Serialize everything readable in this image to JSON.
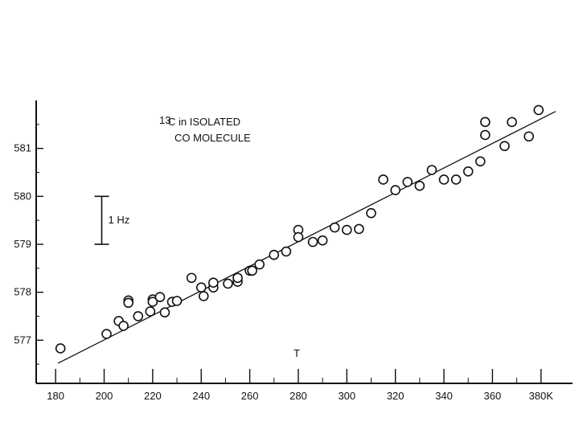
{
  "chart_data": {
    "type": "scatter",
    "title": "",
    "xlabel": "T",
    "ylabel": "",
    "xlim": [
      172,
      393
    ],
    "ylim": [
      576.1,
      582.0
    ],
    "grid": false,
    "legend": "none",
    "x_ticks": [
      180,
      200,
      220,
      240,
      260,
      280,
      300,
      320,
      340,
      360,
      380
    ],
    "x_tick_labels": [
      "180",
      "200",
      "220",
      "240",
      "260",
      "280",
      "300",
      "320",
      "340",
      "360",
      "380K"
    ],
    "y_ticks": [
      577,
      578,
      579,
      580,
      581
    ],
    "y_tick_labels": [
      "577",
      "578",
      "579",
      "580",
      "581"
    ],
    "annotation": {
      "superscript": "13",
      "line1": "C in ISOLATED",
      "line2": "CO MOLECULE"
    },
    "scale_bar": {
      "label": "1 Hz",
      "y_from": 579,
      "y_to": 580,
      "x": 200
    },
    "fit_line": {
      "x": [
        181,
        386
      ],
      "y": [
        576.52,
        581.77
      ]
    },
    "series": [
      {
        "points": [
          [
            182,
            576.83
          ],
          [
            201,
            577.13
          ],
          [
            206,
            577.4
          ],
          [
            208,
            577.3
          ],
          [
            210,
            577.83
          ],
          [
            210,
            577.78
          ],
          [
            214,
            577.5
          ],
          [
            219,
            577.6
          ],
          [
            220,
            577.85
          ],
          [
            220,
            577.8
          ],
          [
            223,
            577.9
          ],
          [
            225,
            577.58
          ],
          [
            228,
            577.8
          ],
          [
            230,
            577.82
          ],
          [
            236,
            578.3
          ],
          [
            240,
            578.1
          ],
          [
            241,
            577.92
          ],
          [
            245,
            578.1
          ],
          [
            245,
            578.2
          ],
          [
            251,
            578.18
          ],
          [
            255,
            578.22
          ],
          [
            255,
            578.3
          ],
          [
            260,
            578.45
          ],
          [
            261,
            578.45
          ],
          [
            264,
            578.58
          ],
          [
            270,
            578.78
          ],
          [
            275,
            578.85
          ],
          [
            280,
            579.3
          ],
          [
            280,
            579.15
          ],
          [
            286,
            579.05
          ],
          [
            290,
            579.08
          ],
          [
            295,
            579.35
          ],
          [
            300,
            579.3
          ],
          [
            305,
            579.32
          ],
          [
            310,
            579.65
          ],
          [
            315,
            580.35
          ],
          [
            320,
            580.13
          ],
          [
            325,
            580.3
          ],
          [
            330,
            580.22
          ],
          [
            335,
            580.55
          ],
          [
            340,
            580.35
          ],
          [
            345,
            580.35
          ],
          [
            350,
            580.52
          ],
          [
            355,
            580.73
          ],
          [
            357,
            581.28
          ],
          [
            357,
            581.55
          ],
          [
            365,
            581.05
          ],
          [
            368,
            581.55
          ],
          [
            375,
            581.25
          ],
          [
            379,
            581.8
          ]
        ]
      }
    ]
  }
}
